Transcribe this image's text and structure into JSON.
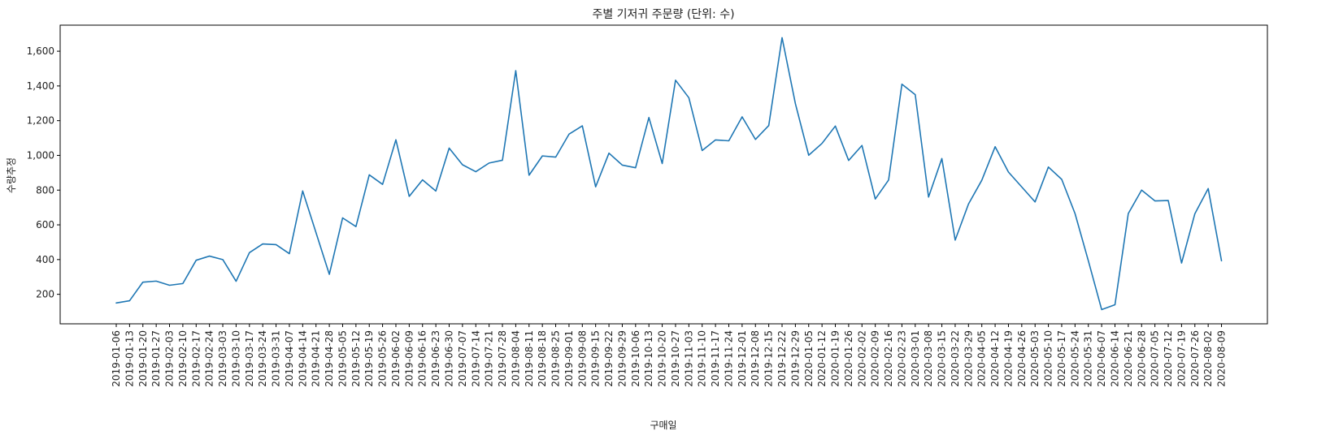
{
  "chart_data": {
    "type": "line",
    "title": "주별 기저귀 주문량 (단위: 수)",
    "xlabel": "구매일",
    "ylabel": "수량추정",
    "y_ticks": [
      200,
      400,
      600,
      800,
      1000,
      1200,
      1400,
      1600
    ],
    "y_tick_labels": [
      "200",
      "400",
      "600",
      "800",
      "1,000",
      "1,200",
      "1,400",
      "1,600"
    ],
    "ylim": [
      30,
      1750
    ],
    "grid": false,
    "line_color": "#1f77b4",
    "x": [
      "2019-01-06",
      "2019-01-13",
      "2019-01-20",
      "2019-01-27",
      "2019-02-03",
      "2019-02-10",
      "2019-02-17",
      "2019-02-24",
      "2019-03-03",
      "2019-03-10",
      "2019-03-17",
      "2019-03-24",
      "2019-03-31",
      "2019-04-07",
      "2019-04-14",
      "2019-04-21",
      "2019-04-28",
      "2019-05-05",
      "2019-05-12",
      "2019-05-19",
      "2019-05-26",
      "2019-06-02",
      "2019-06-09",
      "2019-06-16",
      "2019-06-23",
      "2019-06-30",
      "2019-07-07",
      "2019-07-14",
      "2019-07-21",
      "2019-07-28",
      "2019-08-04",
      "2019-08-11",
      "2019-08-18",
      "2019-08-25",
      "2019-09-01",
      "2019-09-08",
      "2019-09-15",
      "2019-09-22",
      "2019-09-29",
      "2019-10-06",
      "2019-10-13",
      "2019-10-20",
      "2019-10-27",
      "2019-11-03",
      "2019-11-10",
      "2019-11-17",
      "2019-11-24",
      "2019-12-01",
      "2019-12-08",
      "2019-12-15",
      "2019-12-22",
      "2019-12-29",
      "2020-01-05",
      "2020-01-12",
      "2020-01-19",
      "2020-01-26",
      "2020-02-02",
      "2020-02-09",
      "2020-02-16",
      "2020-02-23",
      "2020-03-01",
      "2020-03-08",
      "2020-03-15",
      "2020-03-22",
      "2020-03-29",
      "2020-04-05",
      "2020-04-12",
      "2020-04-19",
      "2020-04-26",
      "2020-05-03",
      "2020-05-10",
      "2020-05-17",
      "2020-05-24",
      "2020-05-31",
      "2020-06-07",
      "2020-06-14",
      "2020-06-21",
      "2020-06-28",
      "2020-07-05",
      "2020-07-12",
      "2020-07-19",
      "2020-07-26",
      "2020-08-02",
      "2020-08-09"
    ],
    "values": [
      150,
      163,
      270,
      276,
      252,
      262,
      396,
      420,
      400,
      275,
      440,
      490,
      486,
      434,
      795,
      555,
      315,
      640,
      590,
      888,
      833,
      1090,
      764,
      859,
      795,
      1042,
      946,
      906,
      956,
      972,
      1488,
      886,
      997,
      990,
      1122,
      1170,
      819,
      1013,
      944,
      929,
      1218,
      953,
      1433,
      1332,
      1028,
      1089,
      1084,
      1222,
      1092,
      1172,
      1678,
      1298,
      1001,
      1069,
      1169,
      971,
      1057,
      749,
      858,
      1410,
      1350,
      760,
      982,
      512,
      720,
      857,
      1050,
      904,
      818,
      732,
      933,
      862,
      665,
      393,
      112,
      140,
      665,
      800,
      738,
      740,
      380,
      664,
      809,
      393
    ]
  }
}
